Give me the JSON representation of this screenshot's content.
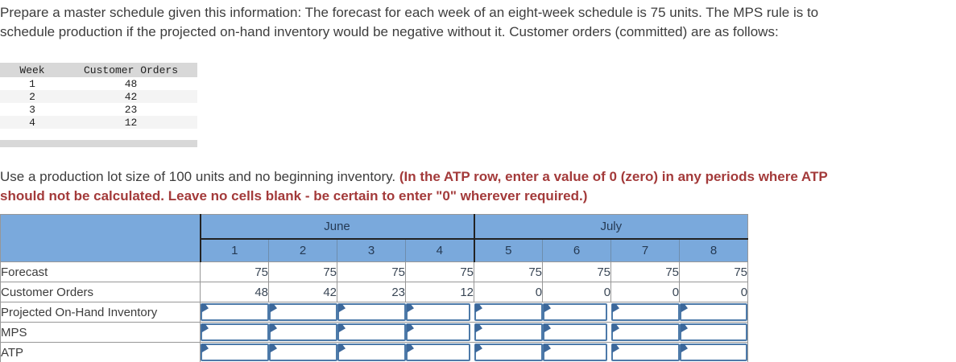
{
  "problem": {
    "intro_line1": "Prepare a master schedule given this information: The forecast for each week of an eight-week schedule is 75 units. The MPS rule is to",
    "intro_line2": "schedule production if the projected on-hand inventory would be negative without it. Customer orders (committed) are as follows:",
    "instruction_normal": "Use a production lot size of 100 units and no beginning inventory. ",
    "instruction_red_line1": "(In the ATP row, enter a value of 0 (zero) in any periods where ATP",
    "instruction_red_line2": "should not be calculated. Leave no cells blank - be certain to enter \"0\" wherever required.)"
  },
  "orders_table": {
    "col_week": "Week",
    "col_orders": "Customer Orders",
    "rows": [
      {
        "week": "1",
        "orders": "48"
      },
      {
        "week": "2",
        "orders": "42"
      },
      {
        "week": "3",
        "orders": "23"
      },
      {
        "week": "4",
        "orders": "12"
      }
    ]
  },
  "schedule_table": {
    "month_june": "June",
    "month_july": "July",
    "weeks": [
      "1",
      "2",
      "3",
      "4",
      "5",
      "6",
      "7",
      "8"
    ],
    "row_labels": {
      "forecast": "Forecast",
      "customer_orders": "Customer Orders",
      "projected_on_hand": "Projected On-Hand Inventory",
      "mps": "MPS",
      "atp": "ATP"
    },
    "forecast_values": [
      "75",
      "75",
      "75",
      "75",
      "75",
      "75",
      "75",
      "75"
    ],
    "customer_orders_values": [
      "48",
      "42",
      "23",
      "12",
      "0",
      "0",
      "0",
      "0"
    ],
    "input_cell_value": ""
  },
  "colors": {
    "header_blue": "#7aa9dc",
    "input_border_blue": "#4d7aa9",
    "flag_blue": "#3c689b",
    "alert_red": "#a33a3a",
    "table_gray": "#d8d8d8"
  }
}
